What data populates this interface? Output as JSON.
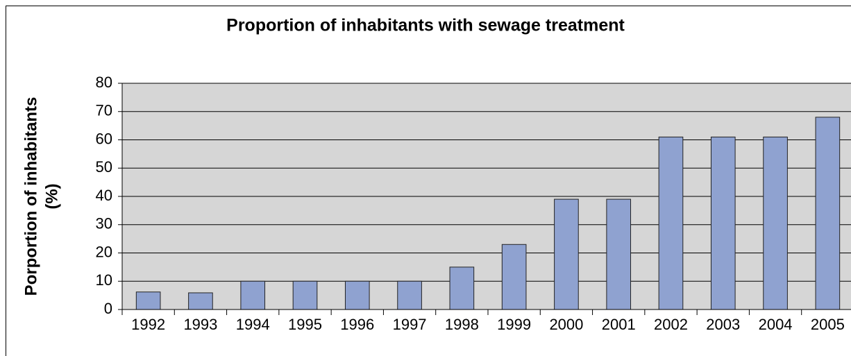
{
  "chart_data": {
    "type": "bar",
    "title": "Proportion of inhabitants with sewage treatment",
    "ylabel": [
      "Porportion of inhabitants",
      "(%)"
    ],
    "categories": [
      "1992",
      "1993",
      "1994",
      "1995",
      "1996",
      "1997",
      "1998",
      "1999",
      "2000",
      "2001",
      "2002",
      "2003",
      "2004",
      "2005"
    ],
    "values": [
      6.2,
      5.9,
      10,
      10,
      10,
      10,
      15,
      23,
      39,
      39,
      61,
      61,
      61,
      68
    ],
    "color": "#8fa2d0",
    "ylim": [
      0,
      80
    ],
    "yticks": [
      0,
      10,
      20,
      30,
      40,
      50,
      60,
      70,
      80
    ],
    "grid": true
  }
}
